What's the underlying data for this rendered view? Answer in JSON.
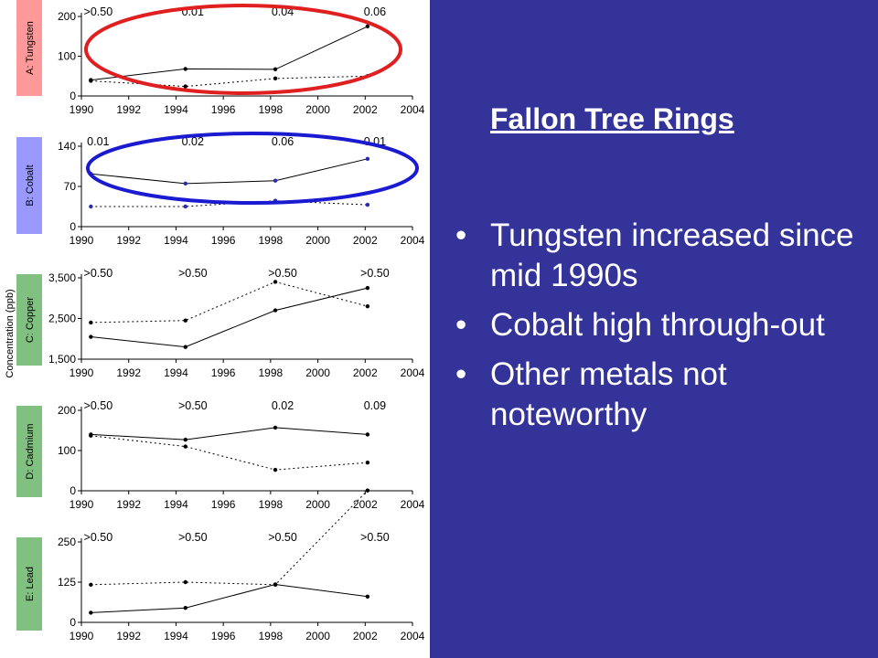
{
  "slide": {
    "title": "Fallon Tree Rings",
    "bullets": [
      "Tungsten increased since mid 1990s",
      "Cobalt high through-out",
      "Other metals not noteworthy"
    ],
    "bullet_symbol": "•"
  },
  "colors": {
    "panel_bg": "#333399",
    "tungsten_label_bg": "#ff9999",
    "cobalt_label_bg": "#9999ff",
    "other_label_bg": "#80c080",
    "red_ellipse": "#e02020",
    "blue_ellipse": "#1a1ad0",
    "cobalt_point": "#2a2ab0"
  },
  "y_axis_title": "Concentration (ppb)",
  "chart_data": [
    {
      "type": "line",
      "panel_label": "A: Tungsten",
      "label_color": "tungsten",
      "xlim": [
        1990,
        2004
      ],
      "xticks": [
        1990,
        1992,
        1994,
        1996,
        1998,
        2000,
        2002,
        2004
      ],
      "ylim": [
        0,
        200
      ],
      "yticks": [
        0,
        100,
        200
      ],
      "ytick_labels": [
        "0",
        "100",
        "200"
      ],
      "p_values": [
        ">0.50",
        "0.01",
        "0.04",
        "0.06"
      ],
      "series": [
        {
          "style": "solid",
          "x": [
            1990.4,
            1994.4,
            1998.2,
            2002.1
          ],
          "y": [
            40,
            68,
            67,
            175
          ]
        },
        {
          "style": "dotted",
          "x": [
            1990.4,
            1994.4,
            1998.2,
            2002.1
          ],
          "y": [
            38,
            24,
            44,
            50
          ]
        }
      ],
      "highlight": "red"
    },
    {
      "type": "line",
      "panel_label": "B: Cobalt",
      "label_color": "cobalt",
      "xlim": [
        1990,
        2004
      ],
      "xticks": [
        1990,
        1992,
        1994,
        1996,
        1998,
        2000,
        2002,
        2004
      ],
      "ylim": [
        0,
        140
      ],
      "yticks": [
        0,
        70,
        140
      ],
      "ytick_labels": [
        "0",
        "70",
        "140"
      ],
      "p_values": [
        "0.01",
        "0.02",
        "0.06",
        "0.01"
      ],
      "series": [
        {
          "style": "solid",
          "x": [
            1990.4,
            1994.4,
            1998.2,
            2002.1
          ],
          "y": [
            92,
            75,
            80,
            118
          ]
        },
        {
          "style": "dotted",
          "x": [
            1990.4,
            1994.4,
            1998.2,
            2002.1
          ],
          "y": [
            35,
            35,
            45,
            38
          ]
        }
      ],
      "highlight": "blue"
    },
    {
      "type": "line",
      "panel_label": "C: Copper",
      "label_color": "other",
      "xlim": [
        1990,
        2004
      ],
      "xticks": [
        1990,
        1992,
        1994,
        1996,
        1998,
        2000,
        2002,
        2004
      ],
      "ylim": [
        1500,
        3500
      ],
      "yticks": [
        1500,
        2500,
        3500
      ],
      "ytick_labels": [
        "1,500",
        "2,500",
        "3,500"
      ],
      "p_values": [
        ">0.50",
        ">0.50",
        ">0.50",
        ">0.50"
      ],
      "series": [
        {
          "style": "solid",
          "x": [
            1990.4,
            1994.4,
            1998.2,
            2002.1
          ],
          "y": [
            2050,
            1800,
            2700,
            3250
          ]
        },
        {
          "style": "dotted",
          "x": [
            1990.4,
            1994.4,
            1998.2,
            2002.1
          ],
          "y": [
            2400,
            2450,
            3400,
            2800
          ]
        }
      ],
      "highlight": null
    },
    {
      "type": "line",
      "panel_label": "D: Cadmium",
      "label_color": "other",
      "xlim": [
        1990,
        2004
      ],
      "xticks": [
        1990,
        1992,
        1994,
        1996,
        1998,
        2000,
        2002,
        2004
      ],
      "ylim": [
        0,
        200
      ],
      "yticks": [
        0,
        100,
        200
      ],
      "ytick_labels": [
        "0",
        "100",
        "200"
      ],
      "p_values": [
        ">0.50",
        ">0.50",
        "0.02",
        "0.09"
      ],
      "series": [
        {
          "style": "solid",
          "x": [
            1990.4,
            1994.4,
            1998.2,
            2002.1
          ],
          "y": [
            140,
            127,
            157,
            140
          ]
        },
        {
          "style": "dotted",
          "x": [
            1990.4,
            1994.4,
            1998.2,
            2002.1
          ],
          "y": [
            137,
            110,
            52,
            70
          ]
        }
      ],
      "highlight": null
    },
    {
      "type": "line",
      "panel_label": "E: Lead",
      "label_color": "other",
      "xlim": [
        1990,
        2004
      ],
      "xticks": [
        1990,
        1992,
        1994,
        1996,
        1998,
        2000,
        2002,
        2004
      ],
      "ylim": [
        0,
        250
      ],
      "yticks": [
        0,
        125,
        250
      ],
      "ytick_labels": [
        "0",
        "125",
        "250"
      ],
      "p_values": [
        ">0.50",
        ">0.50",
        ">0.50",
        ">0.50"
      ],
      "series": [
        {
          "style": "solid",
          "x": [
            1990.4,
            1994.4,
            1998.2,
            2002.1
          ],
          "y": [
            30,
            45,
            118,
            80
          ]
        },
        {
          "style": "dotted",
          "x": [
            1990.4,
            1994.4,
            1998.2,
            2002.1
          ],
          "y": [
            117,
            125,
            117,
            410
          ]
        }
      ],
      "highlight": null
    }
  ]
}
